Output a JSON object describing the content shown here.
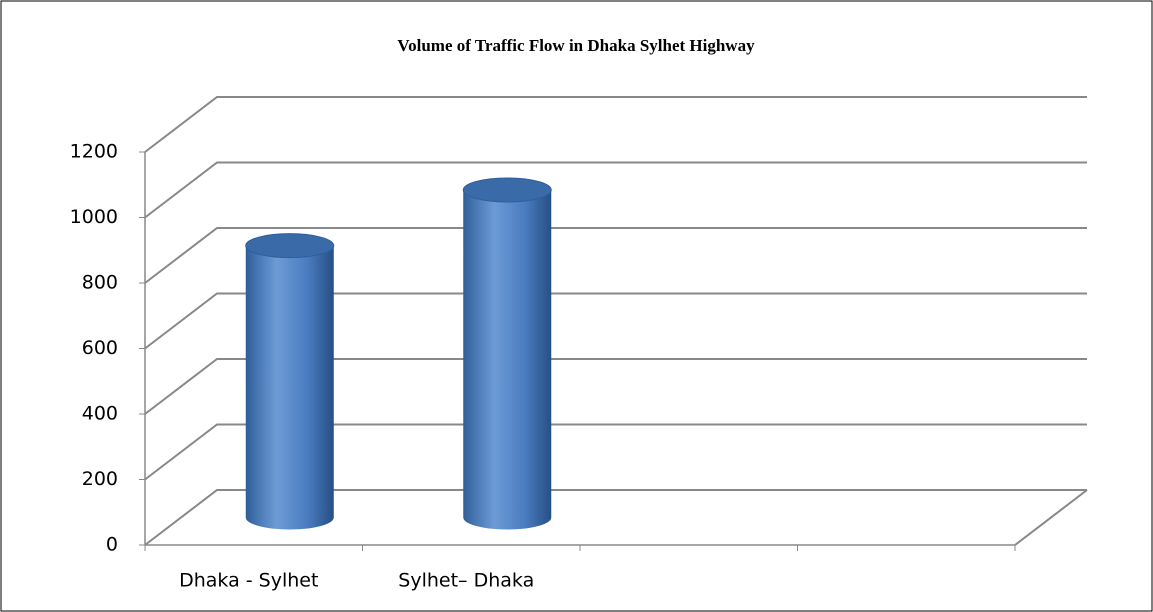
{
  "chart_data": {
    "type": "bar",
    "title": "Volume of Traffic Flow in Dhaka Sylhet Highway",
    "categories": [
      "Dhaka - Sylhet",
      "Sylhet– Dhaka",
      null,
      null
    ],
    "values": [
      830,
      1000,
      null,
      null
    ],
    "color": "#4f81bd",
    "ylim": [
      0,
      1200
    ],
    "yticks": [
      0,
      200,
      400,
      600,
      800,
      1000,
      1200
    ],
    "grid": true
  }
}
